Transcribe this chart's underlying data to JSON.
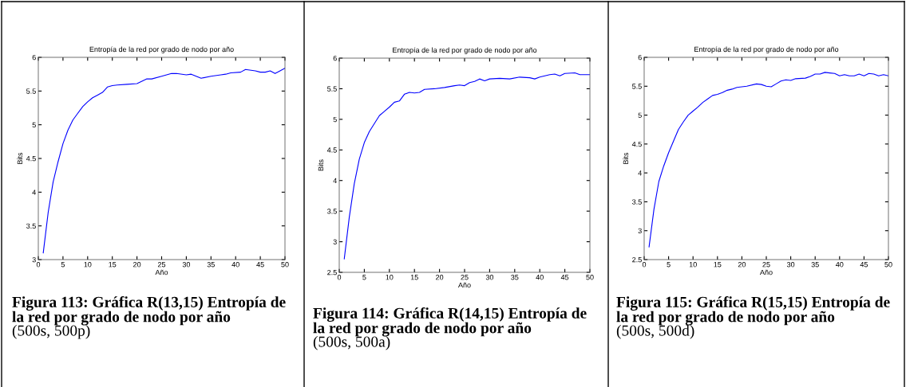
{
  "chart_data": [
    {
      "type": "line",
      "title": "Entropía de la red por grado de nodo por año",
      "xlabel": "Año",
      "ylabel": "Bits",
      "xlim": [
        0,
        50
      ],
      "xticks": [
        0,
        5,
        10,
        15,
        20,
        25,
        30,
        35,
        40,
        45,
        50
      ],
      "ylim": [
        3,
        6
      ],
      "yticks": [
        3,
        3.5,
        4,
        4.5,
        5,
        5.5,
        6
      ],
      "grid": false,
      "legend": false,
      "series": [
        {
          "color": "#0000ff",
          "x": [
            1,
            2,
            3,
            4,
            5,
            6,
            7,
            8,
            9,
            10,
            11,
            12,
            13,
            14,
            15,
            16,
            18,
            20,
            22,
            23,
            25,
            27,
            28,
            30,
            31,
            33,
            35,
            37,
            38,
            39,
            41,
            42,
            44,
            45,
            46,
            47,
            48,
            49,
            50
          ],
          "values": [
            3.1,
            3.7,
            4.15,
            4.45,
            4.72,
            4.92,
            5.07,
            5.17,
            5.27,
            5.34,
            5.4,
            5.44,
            5.48,
            5.56,
            5.58,
            5.59,
            5.6,
            5.61,
            5.68,
            5.68,
            5.72,
            5.76,
            5.76,
            5.74,
            5.75,
            5.69,
            5.72,
            5.74,
            5.75,
            5.77,
            5.78,
            5.82,
            5.8,
            5.78,
            5.78,
            5.8,
            5.76,
            5.8,
            5.84
          ]
        }
      ],
      "annotations": [
        "Figura 113: Gráfica R(13,15) Entropía de la red por grado de nodo por año",
        "(500s, 500p)"
      ]
    },
    {
      "type": "line",
      "title": "Entropía de la red por grado de nodo por año",
      "xlabel": "Año",
      "ylabel": "Bits",
      "xlim": [
        0,
        50
      ],
      "xticks": [
        0,
        5,
        10,
        15,
        20,
        25,
        30,
        35,
        40,
        45,
        50
      ],
      "ylim": [
        2.5,
        6
      ],
      "yticks": [
        2.5,
        3,
        3.5,
        4,
        4.5,
        5,
        5.5,
        6
      ],
      "grid": false,
      "legend": false,
      "series": [
        {
          "color": "#0000ff",
          "x": [
            1,
            2,
            3,
            4,
            5,
            6,
            7,
            8,
            9,
            10,
            11,
            12,
            13,
            14,
            15,
            16,
            17,
            19,
            21,
            23,
            24,
            25,
            26,
            27,
            28,
            29,
            30,
            32,
            34,
            36,
            38,
            39,
            40,
            42,
            43,
            44,
            45,
            47,
            48,
            50
          ],
          "values": [
            2.72,
            3.4,
            3.95,
            4.35,
            4.62,
            4.8,
            4.93,
            5.06,
            5.13,
            5.2,
            5.28,
            5.3,
            5.41,
            5.44,
            5.43,
            5.44,
            5.49,
            5.5,
            5.52,
            5.55,
            5.56,
            5.55,
            5.6,
            5.62,
            5.66,
            5.63,
            5.66,
            5.67,
            5.66,
            5.69,
            5.68,
            5.66,
            5.69,
            5.73,
            5.74,
            5.71,
            5.75,
            5.76,
            5.73,
            5.73
          ]
        }
      ],
      "annotations": [
        "Figura 114: Gráfica R(14,15) Entropía de la red por grado de nodo por año",
        "(500s, 500a)"
      ]
    },
    {
      "type": "line",
      "title": "Entropía de la red por grado de nodo por año",
      "xlabel": "Año",
      "ylabel": "Bits",
      "xlim": [
        0,
        50
      ],
      "xticks": [
        0,
        5,
        10,
        15,
        20,
        25,
        30,
        35,
        40,
        45,
        50
      ],
      "ylim": [
        2.5,
        6
      ],
      "yticks": [
        2.5,
        3,
        3.5,
        4,
        4.5,
        5,
        5.5,
        6
      ],
      "grid": false,
      "legend": false,
      "series": [
        {
          "color": "#0000ff",
          "x": [
            1,
            2,
            3,
            4,
            5,
            6,
            7,
            8,
            9,
            10,
            11,
            12,
            13,
            14,
            15,
            16,
            17,
            18,
            19,
            21,
            23,
            24,
            25,
            26,
            27,
            28,
            29,
            30,
            31,
            33,
            34,
            35,
            36,
            37,
            38,
            39,
            40,
            41,
            42,
            43,
            44,
            45,
            46,
            47,
            48,
            49,
            50
          ],
          "values": [
            2.72,
            3.37,
            3.85,
            4.12,
            4.35,
            4.55,
            4.75,
            4.88,
            5.0,
            5.07,
            5.14,
            5.22,
            5.28,
            5.34,
            5.36,
            5.39,
            5.43,
            5.45,
            5.48,
            5.5,
            5.54,
            5.53,
            5.5,
            5.49,
            5.54,
            5.59,
            5.61,
            5.6,
            5.63,
            5.64,
            5.67,
            5.71,
            5.71,
            5.74,
            5.73,
            5.72,
            5.68,
            5.7,
            5.68,
            5.68,
            5.71,
            5.68,
            5.72,
            5.71,
            5.68,
            5.7,
            5.68
          ]
        }
      ],
      "annotations": [
        "Figura 115: Gráfica R(15,15) Entropía de la red por grado de nodo por año",
        "(500s, 500d)"
      ]
    }
  ]
}
